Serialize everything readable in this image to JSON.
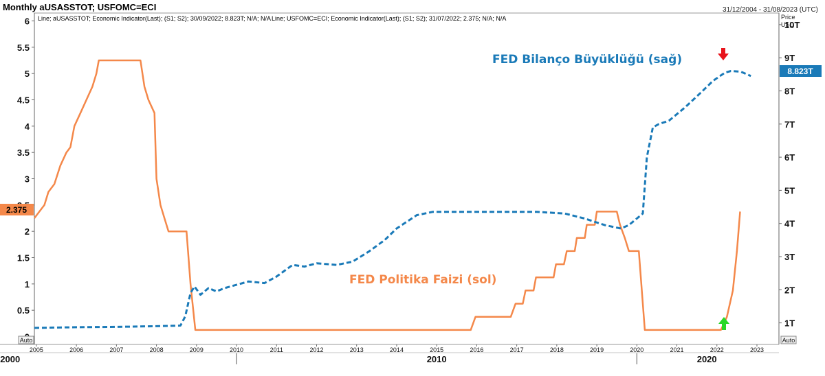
{
  "header": {
    "title": "Monthly aUSASSTOT; USFOMC=ECI",
    "date_range": "31/12/2004 - 31/08/2023 (UTC)",
    "price_label": "Price",
    "currency_label": "USD",
    "auto_left": "Auto",
    "auto_right": "Auto"
  },
  "legend": {
    "series1": "Line; aUSASSTOT; Economic Indicator(Last); (S1; S2); 30/09/2022; 8.823T; N/A; N/A",
    "series2": "Line; USFOMC=ECI; Economic Indicator(Last); (S1; S2); 31/07/2022; 2.375; N/A; N/A"
  },
  "annotations": {
    "balance_label": "FED Bilanço Büyüklüğü (sağ)",
    "rate_label": "FED Politika Faizi (sol)",
    "down_arrow": "red-down-arrow",
    "up_arrow": "green-up-arrow"
  },
  "badges": {
    "left_value": "2.375",
    "right_value": "8.823T"
  },
  "colors": {
    "balance": "#1a7ab8",
    "rate": "#f4884a",
    "left_badge": "#f4884a",
    "right_badge": "#1a7ab8",
    "down_arrow": "#e8141c",
    "up_arrow": "#28d828"
  },
  "chart_data": {
    "type": "line",
    "x_unit": "year",
    "x_ticks": [
      "2005",
      "2006",
      "2007",
      "2008",
      "2009",
      "2010",
      "2011",
      "2012",
      "2013",
      "2014",
      "2015",
      "2016",
      "2017",
      "2018",
      "2019",
      "2020",
      "2021",
      "2022",
      "2023"
    ],
    "x_major_labels": [
      "2000",
      "2010",
      "2020"
    ],
    "y_left": {
      "ticks": [
        "0",
        "0.5",
        "1",
        "1.5",
        "2",
        "2.5",
        "3",
        "3.5",
        "4",
        "4.5",
        "5",
        "5.5",
        "6"
      ],
      "range": [
        -0.15,
        6.15
      ]
    },
    "y_right": {
      "ticks": [
        "1T",
        "2T",
        "3T",
        "4T",
        "5T",
        "6T",
        "7T",
        "8T",
        "9T",
        "10T"
      ],
      "range": [
        0.35,
        10.35
      ]
    },
    "series": [
      {
        "axis": "left",
        "style": "solid",
        "points": [
          [
            2004.95,
            2.25
          ],
          [
            2005.05,
            2.35
          ],
          [
            2005.2,
            2.5
          ],
          [
            2005.3,
            2.75
          ],
          [
            2005.45,
            2.9
          ],
          [
            2005.6,
            3.25
          ],
          [
            2005.75,
            3.5
          ],
          [
            2005.85,
            3.6
          ],
          [
            2005.95,
            4.0
          ],
          [
            2006.1,
            4.25
          ],
          [
            2006.25,
            4.5
          ],
          [
            2006.4,
            4.75
          ],
          [
            2006.5,
            5.0
          ],
          [
            2006.56,
            5.25
          ],
          [
            2007.6,
            5.25
          ],
          [
            2007.7,
            4.75
          ],
          [
            2007.8,
            4.5
          ],
          [
            2007.95,
            4.25
          ],
          [
            2008.0,
            3.0
          ],
          [
            2008.1,
            2.5
          ],
          [
            2008.2,
            2.25
          ],
          [
            2008.3,
            2.0
          ],
          [
            2008.75,
            2.0
          ],
          [
            2008.85,
            1.0
          ],
          [
            2008.97,
            0.125
          ],
          [
            2015.85,
            0.125
          ],
          [
            2015.97,
            0.375
          ],
          [
            2016.85,
            0.375
          ],
          [
            2016.97,
            0.625
          ],
          [
            2017.15,
            0.625
          ],
          [
            2017.22,
            0.875
          ],
          [
            2017.42,
            0.875
          ],
          [
            2017.48,
            1.125
          ],
          [
            2017.92,
            1.125
          ],
          [
            2017.98,
            1.375
          ],
          [
            2018.18,
            1.375
          ],
          [
            2018.25,
            1.625
          ],
          [
            2018.45,
            1.625
          ],
          [
            2018.5,
            1.875
          ],
          [
            2018.7,
            1.875
          ],
          [
            2018.75,
            2.125
          ],
          [
            2018.95,
            2.125
          ],
          [
            2019.0,
            2.375
          ],
          [
            2019.5,
            2.375
          ],
          [
            2019.58,
            2.125
          ],
          [
            2019.7,
            1.875
          ],
          [
            2019.8,
            1.625
          ],
          [
            2020.05,
            1.625
          ],
          [
            2020.2,
            0.125
          ],
          [
            2022.1,
            0.125
          ],
          [
            2022.25,
            0.375
          ],
          [
            2022.4,
            0.875
          ],
          [
            2022.5,
            1.625
          ],
          [
            2022.58,
            2.375
          ]
        ]
      },
      {
        "axis": "right",
        "style": "dashed",
        "points": [
          [
            2004.95,
            0.85
          ],
          [
            2006.0,
            0.87
          ],
          [
            2007.0,
            0.88
          ],
          [
            2008.0,
            0.9
          ],
          [
            2008.6,
            0.92
          ],
          [
            2008.72,
            1.2
          ],
          [
            2008.85,
            1.9
          ],
          [
            2008.95,
            2.1
          ],
          [
            2009.1,
            1.85
          ],
          [
            2009.3,
            2.05
          ],
          [
            2009.5,
            1.95
          ],
          [
            2009.7,
            2.05
          ],
          [
            2010.0,
            2.15
          ],
          [
            2010.3,
            2.25
          ],
          [
            2010.7,
            2.2
          ],
          [
            2011.0,
            2.4
          ],
          [
            2011.4,
            2.75
          ],
          [
            2011.7,
            2.7
          ],
          [
            2012.0,
            2.8
          ],
          [
            2012.5,
            2.75
          ],
          [
            2012.9,
            2.85
          ],
          [
            2013.3,
            3.15
          ],
          [
            2013.7,
            3.5
          ],
          [
            2014.0,
            3.85
          ],
          [
            2014.5,
            4.25
          ],
          [
            2014.9,
            4.35
          ],
          [
            2015.5,
            4.35
          ],
          [
            2016.5,
            4.35
          ],
          [
            2017.5,
            4.35
          ],
          [
            2018.2,
            4.3
          ],
          [
            2018.7,
            4.15
          ],
          [
            2019.2,
            3.95
          ],
          [
            2019.6,
            3.85
          ],
          [
            2019.8,
            3.95
          ],
          [
            2020.0,
            4.15
          ],
          [
            2020.15,
            4.3
          ],
          [
            2020.25,
            6.0
          ],
          [
            2020.4,
            6.9
          ],
          [
            2020.55,
            7.0
          ],
          [
            2020.8,
            7.1
          ],
          [
            2021.2,
            7.5
          ],
          [
            2021.6,
            7.95
          ],
          [
            2021.9,
            8.3
          ],
          [
            2022.2,
            8.55
          ],
          [
            2022.35,
            8.6
          ],
          [
            2022.6,
            8.58
          ],
          [
            2022.85,
            8.45
          ]
        ]
      }
    ]
  }
}
